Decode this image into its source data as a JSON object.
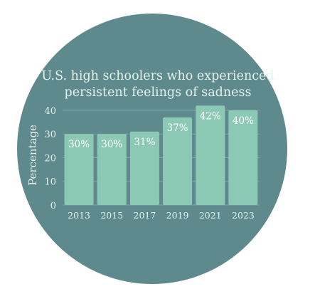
{
  "chart_data": {
    "type": "bar",
    "title_lines": [
      "U.S. high schoolers who experienced",
      "persistent feelings of sadness"
    ],
    "ylabel": "Percentage",
    "xlabel": "",
    "categories": [
      "2013",
      "2015",
      "2017",
      "2019",
      "2021",
      "2023"
    ],
    "values": [
      30,
      30,
      31,
      37,
      42,
      40
    ],
    "value_labels": [
      "30%",
      "30%",
      "31%",
      "37%",
      "42%",
      "40%"
    ],
    "yticks": [
      "0",
      "10",
      "20",
      "30",
      "40"
    ],
    "ylim": [
      0,
      43
    ],
    "grid": true,
    "legend": "none",
    "colors": {
      "circle": "#5e8a8d",
      "bar": "#8cc9b5",
      "text": "#e4f1ec",
      "grid": "#7ea6a4"
    }
  }
}
